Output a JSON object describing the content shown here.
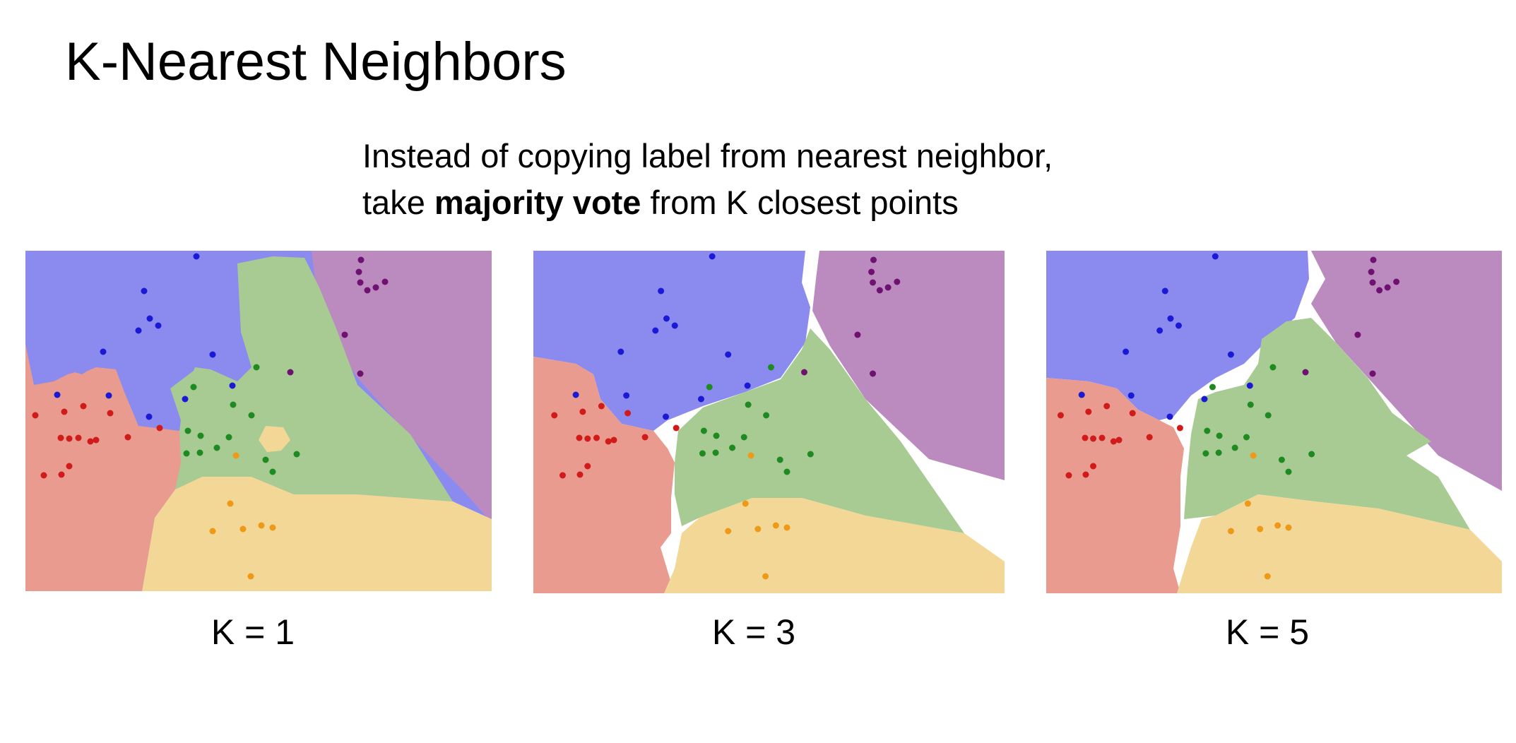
{
  "title": "K-Nearest Neighbors",
  "subtitle": {
    "line1": "Instead of copying label from nearest neighbor,",
    "line2_prefix": "take ",
    "line2_bold": "majority vote",
    "line2_suffix": " from K closest points"
  },
  "colors": {
    "blue_region": "#8b8bef",
    "purple_region": "#bb8bbf",
    "red_region": "#e89b8e",
    "green_region": "#a8cb94",
    "yellow_region": "#f3d796",
    "blue_point": "#1a1ad6",
    "purple_point": "#6e1170",
    "red_point": "#d11a1a",
    "green_point": "#1f8a1f",
    "orange_point": "#ee9a18"
  },
  "panels": [
    {
      "caption": "K = 1"
    },
    {
      "caption": "K = 3"
    },
    {
      "caption": "K = 5"
    }
  ]
}
